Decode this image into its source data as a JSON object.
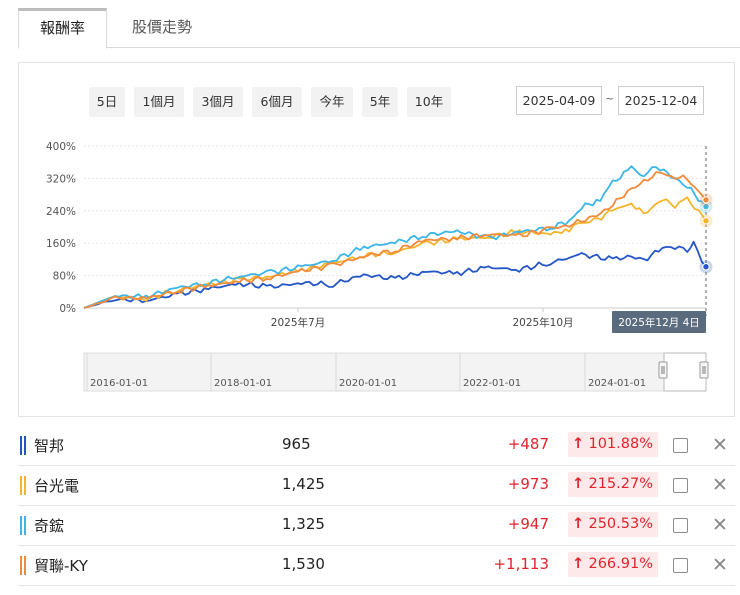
{
  "tabs": [
    {
      "label": "報酬率",
      "active": true
    },
    {
      "label": "股價走勢",
      "active": false
    }
  ],
  "ranges": [
    "5日",
    "1個月",
    "3個月",
    "6個月",
    "今年",
    "5年",
    "10年"
  ],
  "date_range": {
    "start": "2025-04-09",
    "separator": "~",
    "end": "2025-12-04"
  },
  "navigator": {
    "labels": [
      "2016-01-01",
      "2018-01-01",
      "2020-01-01",
      "2022-01-01",
      "2024-01-01"
    ]
  },
  "tooltip_date": "2025年12月 4日",
  "chart_data": {
    "type": "line",
    "x_tick_labels": [
      "2025年7月",
      "2025年10月"
    ],
    "yticks": [
      "400%",
      "320%",
      "240%",
      "160%",
      "80%",
      "0%"
    ],
    "ylim": [
      0,
      400
    ],
    "grid": true,
    "series": [
      {
        "name": "智邦",
        "color": "#2457c5",
        "points": [
          [
            0,
            0
          ],
          [
            5,
            22
          ],
          [
            10,
            18
          ],
          [
            15,
            34
          ],
          [
            20,
            48
          ],
          [
            25,
            60
          ],
          [
            30,
            52
          ],
          [
            35,
            62
          ],
          [
            40,
            58
          ],
          [
            45,
            82
          ],
          [
            50,
            72
          ],
          [
            55,
            90
          ],
          [
            60,
            86
          ],
          [
            65,
            100
          ],
          [
            70,
            95
          ],
          [
            75,
            112
          ],
          [
            80,
            132
          ],
          [
            85,
            120
          ],
          [
            88,
            128
          ],
          [
            90,
            118
          ],
          [
            93,
            148
          ],
          [
            95,
            152
          ],
          [
            97,
            140
          ],
          [
            98,
            158
          ],
          [
            100,
            101.88
          ]
        ]
      },
      {
        "name": "台光電",
        "color": "#f2b52b",
        "points": [
          [
            0,
            0
          ],
          [
            5,
            28
          ],
          [
            10,
            22
          ],
          [
            15,
            45
          ],
          [
            20,
            58
          ],
          [
            25,
            70
          ],
          [
            30,
            78
          ],
          [
            35,
            95
          ],
          [
            40,
            110
          ],
          [
            45,
            130
          ],
          [
            50,
            138
          ],
          [
            55,
            160
          ],
          [
            60,
            170
          ],
          [
            65,
            175
          ],
          [
            70,
            190
          ],
          [
            75,
            182
          ],
          [
            78,
            195
          ],
          [
            80,
            210
          ],
          [
            82,
            215
          ],
          [
            85,
            240
          ],
          [
            88,
            260
          ],
          [
            90,
            232
          ],
          [
            93,
            268
          ],
          [
            95,
            252
          ],
          [
            97,
            270
          ],
          [
            100,
            215.27
          ]
        ]
      },
      {
        "name": "奇鋐",
        "color": "#3bb6e6",
        "points": [
          [
            0,
            0
          ],
          [
            5,
            30
          ],
          [
            10,
            28
          ],
          [
            15,
            50
          ],
          [
            20,
            62
          ],
          [
            25,
            78
          ],
          [
            30,
            88
          ],
          [
            35,
            102
          ],
          [
            40,
            118
          ],
          [
            45,
            150
          ],
          [
            50,
            162
          ],
          [
            55,
            180
          ],
          [
            60,
            190
          ],
          [
            65,
            172
          ],
          [
            70,
            188
          ],
          [
            75,
            198
          ],
          [
            78,
            215
          ],
          [
            80,
            248
          ],
          [
            83,
            268
          ],
          [
            85,
            310
          ],
          [
            88,
            345
          ],
          [
            90,
            328
          ],
          [
            92,
            350
          ],
          [
            95,
            320
          ],
          [
            97,
            300
          ],
          [
            100,
            250.53
          ]
        ]
      },
      {
        "name": "貿聯-KY",
        "color": "#f18b3c",
        "points": [
          [
            0,
            0
          ],
          [
            5,
            25
          ],
          [
            10,
            24
          ],
          [
            15,
            42
          ],
          [
            20,
            55
          ],
          [
            25,
            66
          ],
          [
            30,
            75
          ],
          [
            35,
            92
          ],
          [
            40,
            105
          ],
          [
            45,
            128
          ],
          [
            50,
            142
          ],
          [
            55,
            168
          ],
          [
            60,
            172
          ],
          [
            65,
            182
          ],
          [
            70,
            178
          ],
          [
            75,
            196
          ],
          [
            78,
            205
          ],
          [
            80,
            215
          ],
          [
            83,
            232
          ],
          [
            85,
            255
          ],
          [
            88,
            295
          ],
          [
            90,
            310
          ],
          [
            92,
            335
          ],
          [
            95,
            325
          ],
          [
            97,
            318
          ],
          [
            100,
            266.91
          ]
        ]
      }
    ]
  },
  "stocks": [
    {
      "name": "智邦",
      "price": "965",
      "change": "+487",
      "pct": "101.88%",
      "arrow": "↑",
      "color": "#2457c5"
    },
    {
      "name": "台光電",
      "price": "1,425",
      "change": "+973",
      "pct": "215.27%",
      "arrow": "↑",
      "color": "#f2b52b"
    },
    {
      "name": "奇鋐",
      "price": "1,325",
      "change": "+947",
      "pct": "250.53%",
      "arrow": "↑",
      "color": "#3bb6e6"
    },
    {
      "name": "貿聯-KY",
      "price": "1,530",
      "change": "+1,113",
      "pct": "266.91%",
      "arrow": "↑",
      "color": "#f18b3c"
    }
  ],
  "close_glyph": "✕"
}
